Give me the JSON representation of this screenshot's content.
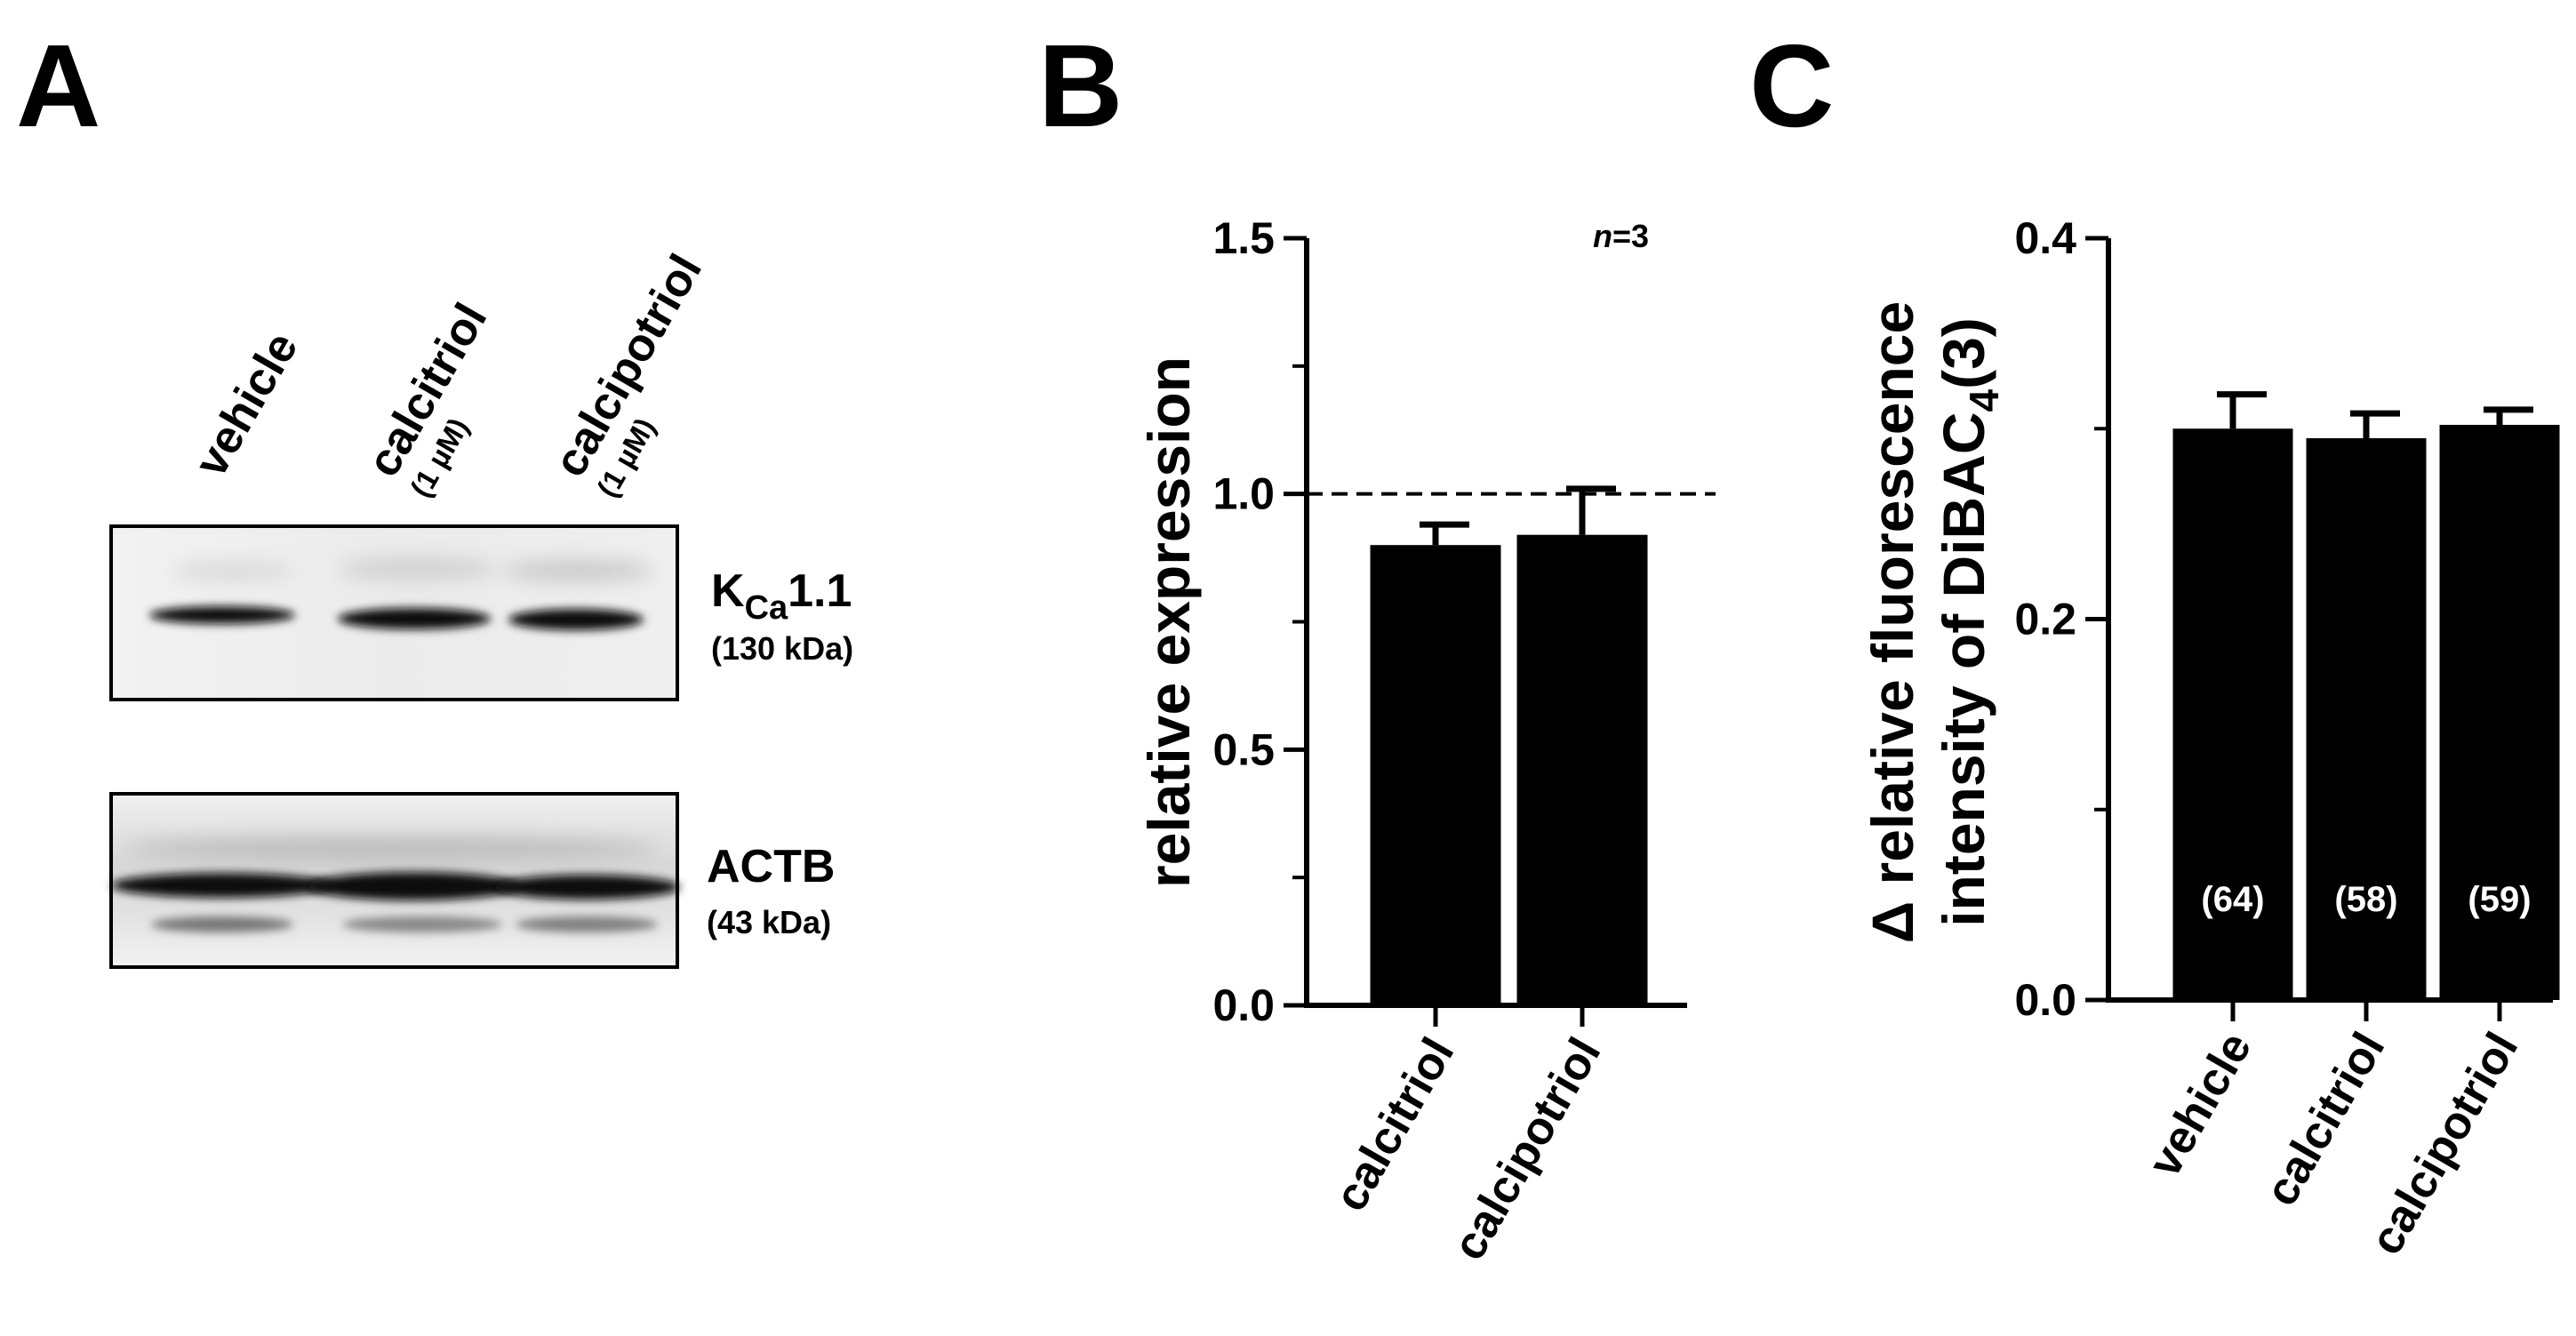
{
  "panel_a": {
    "letter": "A",
    "lanes": [
      {
        "label": "vehicle",
        "sub": ""
      },
      {
        "label": "calcitriol",
        "sub": "(1 µM)"
      },
      {
        "label": "calcipotriol",
        "sub": "(1 µM)"
      }
    ],
    "blots": [
      {
        "name_main": "K",
        "name_sub": "Ca",
        "name_rest": "1.1",
        "mw": "(130 kDa)"
      },
      {
        "name_main": "ACTB",
        "name_sub": "",
        "name_rest": "",
        "mw": "(43 kDa)"
      }
    ]
  },
  "chart_data": [
    {
      "panel": "B",
      "type": "bar",
      "categories": [
        "calcitriol",
        "calcipotriol"
      ],
      "values": [
        0.9,
        0.92
      ],
      "errors": [
        0.04,
        0.09
      ],
      "ylabel": "relative expression",
      "ylim": [
        0,
        1.5
      ],
      "yticks": [
        "0.0",
        "0.5",
        "1.0",
        "1.5"
      ],
      "reference_line": 1.0,
      "annotation": {
        "italic": "n",
        "rest": "=3"
      }
    },
    {
      "panel": "C",
      "type": "bar",
      "categories": [
        "vehicle",
        "calcitriol",
        "calcipotriol"
      ],
      "values": [
        0.3,
        0.295,
        0.302
      ],
      "errors": [
        0.018,
        0.013,
        0.008
      ],
      "bar_labels": [
        "(64)",
        "(58)",
        "(59)"
      ],
      "ylabel_line1": "Δ relative fluorescence",
      "ylabel_line2_main": "intensity of DiBAC",
      "ylabel_line2_sub": "4",
      "ylabel_line2_end": "(3)",
      "ylim": [
        0,
        0.4
      ],
      "yticks": [
        "0.0",
        "0.2",
        "0.4"
      ]
    }
  ],
  "colors": {
    "bar": "#000000",
    "background": "#ffffff",
    "bar_label": "#ffffff"
  }
}
